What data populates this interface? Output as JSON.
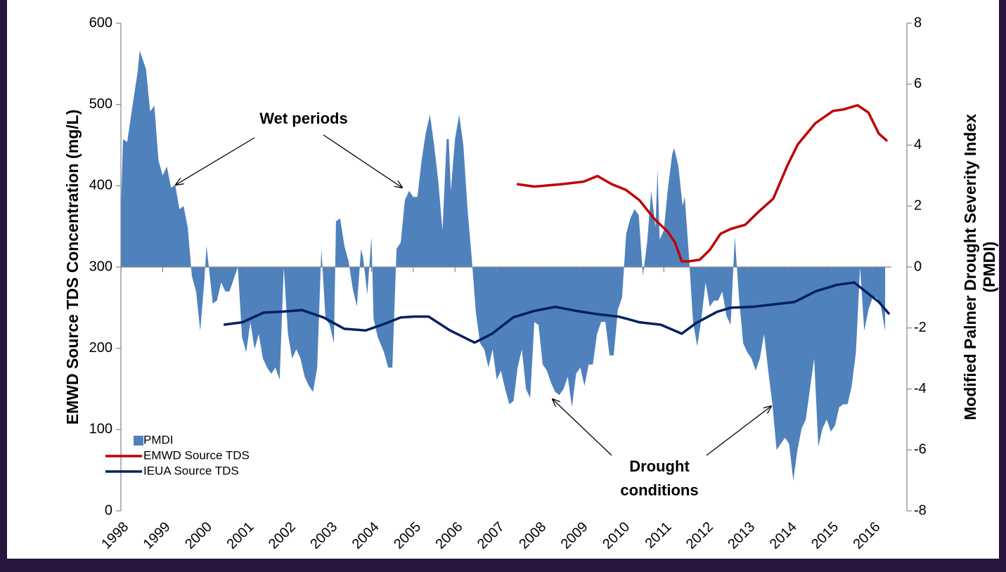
{
  "chart_data": {
    "type": "combo",
    "ylabel": "EMWD Source TDS Concentration (mg/L)",
    "y2label": [
      "Modified Palmer Drought Severity Index",
      "(PMDI)"
    ],
    "xlim": [
      1998,
      2016.45
    ],
    "xticks": [
      1998,
      1999,
      2000,
      2001,
      2002,
      2003,
      2004,
      2005,
      2006,
      2007,
      2008,
      2009,
      2010,
      2011,
      2012,
      2013,
      2014,
      2015,
      2016
    ],
    "ylim": [
      0,
      600
    ],
    "yticks": [
      0,
      100,
      200,
      300,
      400,
      500,
      600
    ],
    "y2lim": [
      -8,
      8
    ],
    "y2ticks": [
      -8,
      -6,
      -4,
      -2,
      0,
      2,
      4,
      6,
      8
    ],
    "legend": "lower left",
    "annotations": [
      {
        "lines": [
          "Wet periods"
        ]
      },
      {
        "lines": [
          "Drought",
          "conditions"
        ]
      }
    ],
    "series": [
      {
        "name": "PMDI",
        "type": "area",
        "axis": "y2",
        "color": "#4f81bd",
        "x": [
          1998.0,
          1998.05,
          1998.15,
          1998.3,
          1998.4,
          1998.45,
          1998.6,
          1998.7,
          1998.8,
          1998.9,
          1999.0,
          1999.1,
          1999.2,
          1999.3,
          1999.4,
          1999.5,
          1999.6,
          1999.7,
          1999.8,
          1999.9,
          2000.0,
          2000.05,
          2000.2,
          2000.3,
          2000.4,
          2000.5,
          2000.6,
          2000.7,
          2000.8,
          2000.9,
          2001.0,
          2001.1,
          2001.2,
          2001.3,
          2001.4,
          2001.5,
          2001.6,
          2001.7,
          2001.8,
          2001.9,
          2002.0,
          2002.1,
          2002.2,
          2002.3,
          2002.4,
          2002.5,
          2002.6,
          2002.7,
          2002.8,
          2002.9,
          2003.0,
          2003.1,
          2003.15,
          2003.25,
          2003.35,
          2003.45,
          2003.55,
          2003.65,
          2003.75,
          2003.8,
          2003.9,
          2004.0,
          2004.05,
          2004.15,
          2004.3,
          2004.4,
          2004.5,
          2004.6,
          2004.7,
          2004.8,
          2004.9,
          2005.0,
          2005.1,
          2005.2,
          2005.3,
          2005.4,
          2005.5,
          2005.6,
          2005.7,
          2005.8,
          2005.85,
          2005.9,
          2006.0,
          2006.1,
          2006.2,
          2006.3,
          2006.4,
          2006.5,
          2006.6,
          2006.7,
          2006.8,
          2006.9,
          2007.0,
          2007.1,
          2007.2,
          2007.3,
          2007.4,
          2007.5,
          2007.6,
          2007.7,
          2007.8,
          2007.9,
          2008.0,
          2008.1,
          2008.2,
          2008.3,
          2008.4,
          2008.5,
          2008.6,
          2008.7,
          2008.8,
          2008.9,
          2009.0,
          2009.1,
          2009.2,
          2009.3,
          2009.4,
          2009.5,
          2009.6,
          2009.7,
          2009.8,
          2009.9,
          2010.0,
          2010.1,
          2010.2,
          2010.3,
          2010.4,
          2010.5,
          2010.6,
          2010.7,
          2010.8,
          2010.85,
          2010.9,
          2011.0,
          2011.1,
          2011.2,
          2011.25,
          2011.35,
          2011.45,
          2011.5,
          2011.6,
          2011.7,
          2011.8,
          2011.9,
          2012.0,
          2012.1,
          2012.2,
          2012.3,
          2012.4,
          2012.5,
          2012.6,
          2012.7,
          2012.8,
          2012.9,
          2013.0,
          2013.1,
          2013.2,
          2013.3,
          2013.4,
          2013.5,
          2013.6,
          2013.7,
          2013.8,
          2013.9,
          2014.0,
          2014.1,
          2014.2,
          2014.3,
          2014.4,
          2014.5,
          2014.6,
          2014.7,
          2014.8,
          2014.9,
          2015.0,
          2015.1,
          2015.2,
          2015.3,
          2015.4,
          2015.5,
          2015.6,
          2015.7,
          2015.8,
          2015.9,
          2016.0,
          2016.1,
          2016.2,
          2016.3
        ],
        "values": [
          1.8,
          4.2,
          4.1,
          5.5,
          6.4,
          7.1,
          6.5,
          5.1,
          5.3,
          3.5,
          3.0,
          3.3,
          2.6,
          2.7,
          1.9,
          2.0,
          1.3,
          -0.3,
          -0.8,
          -2.1,
          -0.4,
          0.7,
          -1.2,
          -1.1,
          -0.5,
          -0.8,
          -0.8,
          -0.4,
          0.0,
          -2.3,
          -2.8,
          -1.8,
          -2.7,
          -2.2,
          -3.0,
          -3.3,
          -3.5,
          -3.3,
          -3.7,
          0.0,
          -2.2,
          -3.0,
          -2.7,
          -3.0,
          -3.6,
          -3.9,
          -4.1,
          -3.3,
          0.6,
          -1.7,
          -1.9,
          -2.5,
          1.5,
          1.6,
          0.7,
          0.2,
          -0.7,
          -1.3,
          0.6,
          0.3,
          -0.9,
          1.0,
          -1.7,
          -2.3,
          -2.8,
          -3.3,
          -3.3,
          0.6,
          0.8,
          2.2,
          2.5,
          2.3,
          2.3,
          3.5,
          4.4,
          5.0,
          4.0,
          2.8,
          1.2,
          4.2,
          4.2,
          2.5,
          4.2,
          5.0,
          4.0,
          1.9,
          0.3,
          -1.5,
          -2.5,
          -2.7,
          -3.3,
          -2.7,
          -3.7,
          -3.4,
          -4.0,
          -4.5,
          -4.4,
          -3.3,
          -2.7,
          -4.0,
          -4.3,
          -1.8,
          -1.9,
          -3.2,
          -3.4,
          -3.8,
          -4.1,
          -4.2,
          -4.0,
          -3.6,
          -4.6,
          -3.5,
          -3.3,
          -3.9,
          -3.2,
          -3.2,
          -2.2,
          -1.8,
          -1.8,
          -2.9,
          -2.9,
          -1.4,
          -1.0,
          1.1,
          1.6,
          1.9,
          1.7,
          -0.3,
          0.8,
          2.5,
          1.3,
          3.2,
          0.9,
          1.2,
          2.6,
          3.7,
          3.9,
          3.3,
          2.0,
          2.3,
          0.4,
          -1.8,
          -2.6,
          -1.7,
          -0.5,
          -1.3,
          -1.1,
          -1.1,
          -0.8,
          -1.6,
          -1.9,
          1.0,
          -1.0,
          -2.5,
          -2.8,
          -3.0,
          -3.4,
          -3.0,
          -2.2,
          -3.4,
          -4.5,
          -6.0,
          -5.8,
          -5.6,
          -5.8,
          -7.0,
          -6.0,
          -5.3,
          -5.0,
          -4.0,
          -3.0,
          -5.9,
          -5.3,
          -5.0,
          -5.4,
          -5.2,
          -4.6,
          -4.5,
          -4.5,
          -3.9,
          -2.8,
          0.0,
          -2.1,
          -1.4,
          -1.0,
          -1.0,
          -1.3,
          -2.1
        ]
      },
      {
        "name": "EMWD Source TDS",
        "type": "line",
        "axis": "y",
        "color": "#c00000",
        "x": [
          2007.48,
          2007.9,
          2008.57,
          2009.08,
          2009.41,
          2009.75,
          2010.09,
          2010.42,
          2010.76,
          2011.1,
          2011.27,
          2011.43,
          2011.6,
          2011.86,
          2012.1,
          2012.36,
          2012.61,
          2012.95,
          2013.29,
          2013.62,
          2013.96,
          2014.21,
          2014.63,
          2015.05,
          2015.31,
          2015.64,
          2015.9,
          2016.15,
          2016.35
        ],
        "values": [
          402,
          399,
          402,
          405,
          412,
          402,
          395,
          382,
          360,
          343,
          330,
          307,
          307,
          309,
          321,
          341,
          347,
          352,
          369,
          384,
          425,
          451,
          477,
          492,
          494,
          499,
          490,
          464,
          455
        ]
      },
      {
        "name": "IEUA Source TDS",
        "type": "line",
        "axis": "y",
        "color": "#002060",
        "x": [
          2000.46,
          2000.91,
          2001.42,
          2001.84,
          2002.34,
          2002.85,
          2003.35,
          2003.86,
          2004.36,
          2004.7,
          2005.04,
          2005.37,
          2005.88,
          2006.47,
          2006.89,
          2007.39,
          2007.9,
          2008.4,
          2008.91,
          2009.41,
          2009.92,
          2010.42,
          2010.93,
          2011.43,
          2011.77,
          2012.28,
          2012.61,
          2013.12,
          2013.62,
          2014.13,
          2014.63,
          2015.14,
          2015.56,
          2015.9,
          2016.15,
          2016.4
        ],
        "values": [
          229,
          232,
          244,
          245,
          247,
          238,
          224,
          222,
          231,
          238,
          239,
          239,
          222,
          207,
          218,
          238,
          246,
          251,
          246,
          242,
          239,
          232,
          229,
          218,
          231,
          245,
          250,
          251,
          254,
          257,
          270,
          278,
          281,
          267,
          257,
          242
        ]
      }
    ]
  }
}
